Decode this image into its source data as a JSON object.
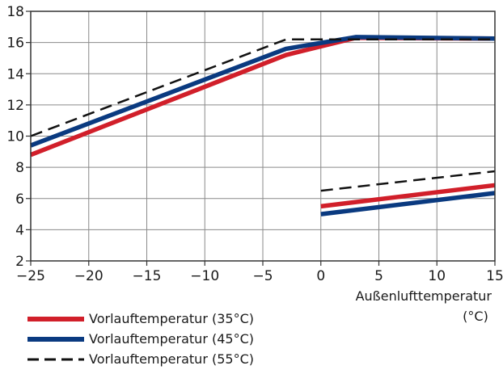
{
  "chart_data": {
    "type": "line",
    "xlabel": "Außenlufttemperatur",
    "xunit": "(°C)",
    "ylabel": "",
    "xlim": [
      -25,
      15
    ],
    "ylim": [
      2,
      18
    ],
    "xticks": [
      -25,
      -20,
      -15,
      -10,
      -5,
      0,
      5,
      10,
      15
    ],
    "yticks": [
      2,
      4,
      6,
      8,
      10,
      12,
      14,
      16,
      18
    ],
    "grid": true,
    "legend_position": "bottom-left",
    "series": [
      {
        "name": "Vorlauftemperatur (35°C)",
        "color": "#d11f2a",
        "style": "solid",
        "segments": [
          [
            [
              -25,
              8.8
            ],
            [
              -3,
              15.2
            ],
            [
              3,
              16.3
            ],
            [
              15,
              16.25
            ]
          ],
          [
            [
              0,
              5.5
            ],
            [
              15,
              6.85
            ]
          ]
        ]
      },
      {
        "name": "Vorlauftemperatur (45°C)",
        "color": "#0a3a80",
        "style": "solid",
        "segments": [
          [
            [
              -25,
              9.4
            ],
            [
              -3,
              15.6
            ],
            [
              3,
              16.35
            ],
            [
              15,
              16.25
            ]
          ],
          [
            [
              0,
              5.0
            ],
            [
              15,
              6.35
            ]
          ]
        ]
      },
      {
        "name": "Vorlauftemperatur (55°C)",
        "color": "#111111",
        "style": "dashed",
        "segments": [
          [
            [
              -25,
              10.0
            ],
            [
              -3,
              16.2
            ],
            [
              15,
              16.2
            ]
          ],
          [
            [
              0,
              6.5
            ],
            [
              15,
              7.75
            ]
          ]
        ]
      }
    ]
  }
}
